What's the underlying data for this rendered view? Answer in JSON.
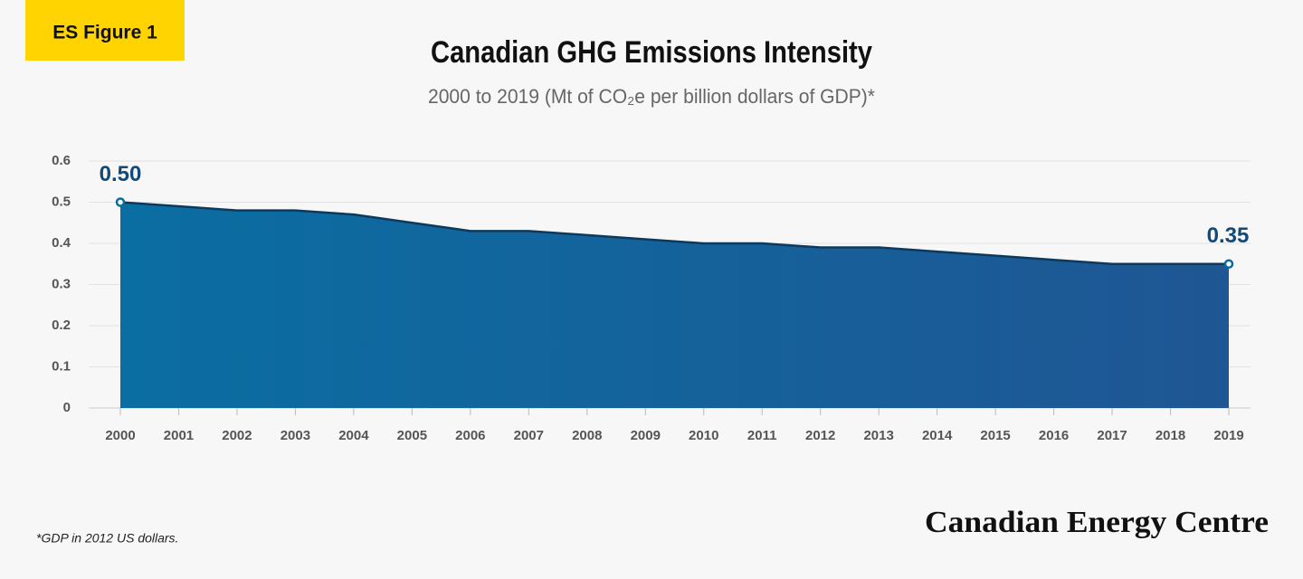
{
  "badge": "ES Figure 1",
  "footnote": "*GDP in 2012 US dollars.",
  "brand": "Canadian Energy Centre",
  "chart_data": {
    "type": "area",
    "title": "Canadian GHG Emissions Intensity",
    "subtitle": "2000 to 2019 (Mt of CO₂e per billion dollars of GDP)*",
    "categories": [
      "2000",
      "2001",
      "2002",
      "2003",
      "2004",
      "2005",
      "2006",
      "2007",
      "2008",
      "2009",
      "2010",
      "2011",
      "2012",
      "2013",
      "2014",
      "2015",
      "2016",
      "2017",
      "2018",
      "2019"
    ],
    "values": [
      0.5,
      0.49,
      0.48,
      0.48,
      0.47,
      0.45,
      0.43,
      0.43,
      0.42,
      0.41,
      0.4,
      0.4,
      0.39,
      0.39,
      0.38,
      0.37,
      0.36,
      0.35,
      0.35,
      0.35
    ],
    "value_labels": [
      "0.50",
      null,
      null,
      null,
      null,
      null,
      null,
      null,
      null,
      null,
      null,
      null,
      null,
      null,
      null,
      null,
      null,
      null,
      null,
      "0.35"
    ],
    "color": "#0a6a9e",
    "line_color": "#0d3a5c",
    "ylim": [
      0,
      0.6
    ],
    "yticks": [
      0,
      0.1,
      0.2,
      0.3,
      0.4,
      0.5,
      0.6
    ],
    "grid": true
  }
}
